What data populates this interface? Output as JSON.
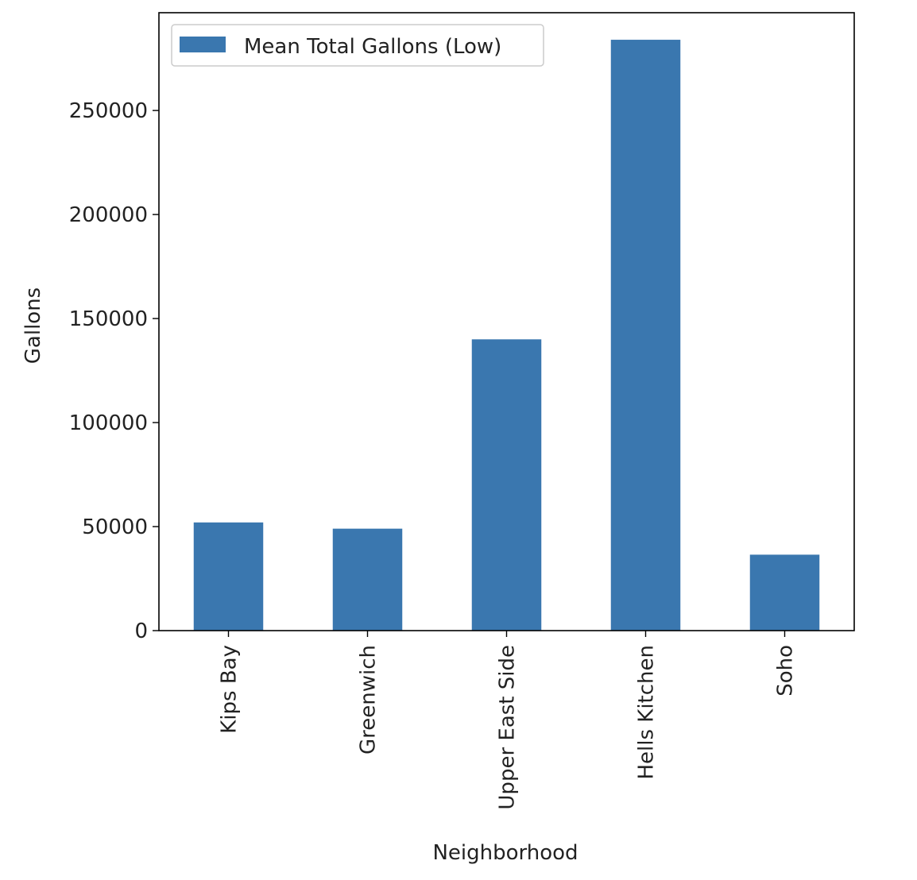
{
  "chart_data": {
    "type": "bar",
    "title": "",
    "xlabel": "Neighborhood",
    "ylabel": "Gallons",
    "categories": [
      "Kips Bay",
      "Greenwich",
      "Upper East Side",
      "Hells Kitchen",
      "Soho"
    ],
    "series": [
      {
        "name": "Mean Total Gallons (Low)",
        "values": [
          52000,
          49000,
          140000,
          284000,
          36500
        ],
        "color": "#3a77af"
      }
    ],
    "yticks": [
      0,
      50000,
      100000,
      150000,
      200000,
      250000
    ],
    "ytick_labels": [
      "0",
      "50000",
      "100000",
      "150000",
      "200000",
      "250000"
    ],
    "ylim": [
      0,
      297000
    ],
    "grid": false,
    "legend_position": "top-left"
  }
}
